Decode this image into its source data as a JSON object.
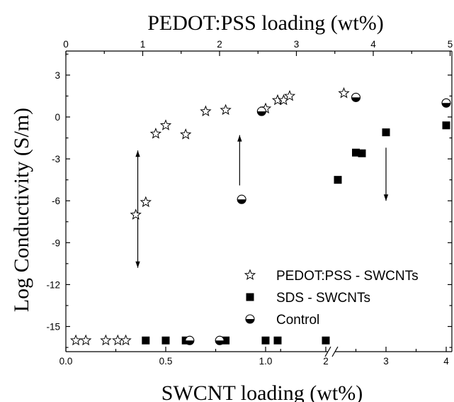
{
  "chart_data": {
    "type": "scatter",
    "title": "",
    "xlabel": "SWCNT loading (wt%)",
    "x2label": "PEDOT:PSS loading (wt%)",
    "ylabel": "Log Conductivity (S/m)",
    "ylim": [
      -16.5,
      4
    ],
    "yticks": [
      -15,
      -12,
      -9,
      -6,
      -3,
      0,
      3
    ],
    "xticks_bottom": [
      {
        "value": 0.0,
        "label": "0.0"
      },
      {
        "value": 0.5,
        "label": "0.5"
      },
      {
        "value": 1.0,
        "label": "1.0"
      },
      {
        "value": 2,
        "label": "2"
      },
      {
        "value": 3,
        "label": "3"
      },
      {
        "value": 4,
        "label": "4"
      }
    ],
    "xticks_bottom_minor": [
      0.25,
      0.75,
      1.25,
      2.5,
      3.5
    ],
    "xticks_top": [
      0,
      1,
      2,
      3,
      4,
      5
    ],
    "x_axis_break_after": 1.0,
    "grid": false,
    "legend_position": "bottom-right",
    "series": [
      {
        "name": "PEDOT:PSS - SWCNTs",
        "marker": "star",
        "points": [
          {
            "x": 0.05,
            "y": -16
          },
          {
            "x": 0.1,
            "y": -16
          },
          {
            "x": 0.2,
            "y": -16
          },
          {
            "x": 0.26,
            "y": -16
          },
          {
            "x": 0.3,
            "y": -16
          },
          {
            "x": 0.35,
            "y": -7
          },
          {
            "x": 0.4,
            "y": -6.1
          },
          {
            "x": 0.45,
            "y": -1.2
          },
          {
            "x": 0.5,
            "y": -0.6
          },
          {
            "x": 0.6,
            "y": -1.25
          },
          {
            "x": 0.7,
            "y": 0.4
          },
          {
            "x": 0.8,
            "y": 0.5
          },
          {
            "x": 1.0,
            "y": 0.6
          },
          {
            "x": 1.2,
            "y": 1.2
          },
          {
            "x": 1.3,
            "y": 1.2
          },
          {
            "x": 1.4,
            "y": 1.5
          },
          {
            "x": 2.3,
            "y": 1.7
          }
        ]
      },
      {
        "name": "SDS - SWCNTs",
        "marker": "square",
        "points": [
          {
            "x": 0.4,
            "y": -16
          },
          {
            "x": 0.5,
            "y": -16
          },
          {
            "x": 0.6,
            "y": -16
          },
          {
            "x": 0.8,
            "y": -16
          },
          {
            "x": 1.0,
            "y": -16
          },
          {
            "x": 1.2,
            "y": -16
          },
          {
            "x": 2.0,
            "y": -16
          },
          {
            "x": 2.2,
            "y": -4.5
          },
          {
            "x": 2.5,
            "y": -2.55
          },
          {
            "x": 2.6,
            "y": -2.6
          },
          {
            "x": 3.0,
            "y": -1.1
          },
          {
            "x": 4.0,
            "y": -0.6
          }
        ]
      },
      {
        "name": "Control",
        "marker": "half-circle",
        "points": [
          {
            "x": 0.62,
            "y": -16
          },
          {
            "x": 0.77,
            "y": -16
          },
          {
            "x": 0.88,
            "y": -5.9
          },
          {
            "x": 0.98,
            "y": 0.4
          },
          {
            "x": 2.5,
            "y": 1.4
          },
          {
            "x": 4.0,
            "y": 1.0
          }
        ]
      }
    ],
    "annotations": [
      {
        "type": "double-arrow",
        "x": 0.36,
        "y_from": -10.8,
        "y_to": -2.4
      },
      {
        "type": "arrow-up",
        "x": 0.87,
        "y_from": -4.9,
        "y_to": -1.3
      },
      {
        "type": "arrow-down",
        "x": 3.0,
        "y_from": -2.2,
        "y_to": -6.0
      }
    ]
  }
}
